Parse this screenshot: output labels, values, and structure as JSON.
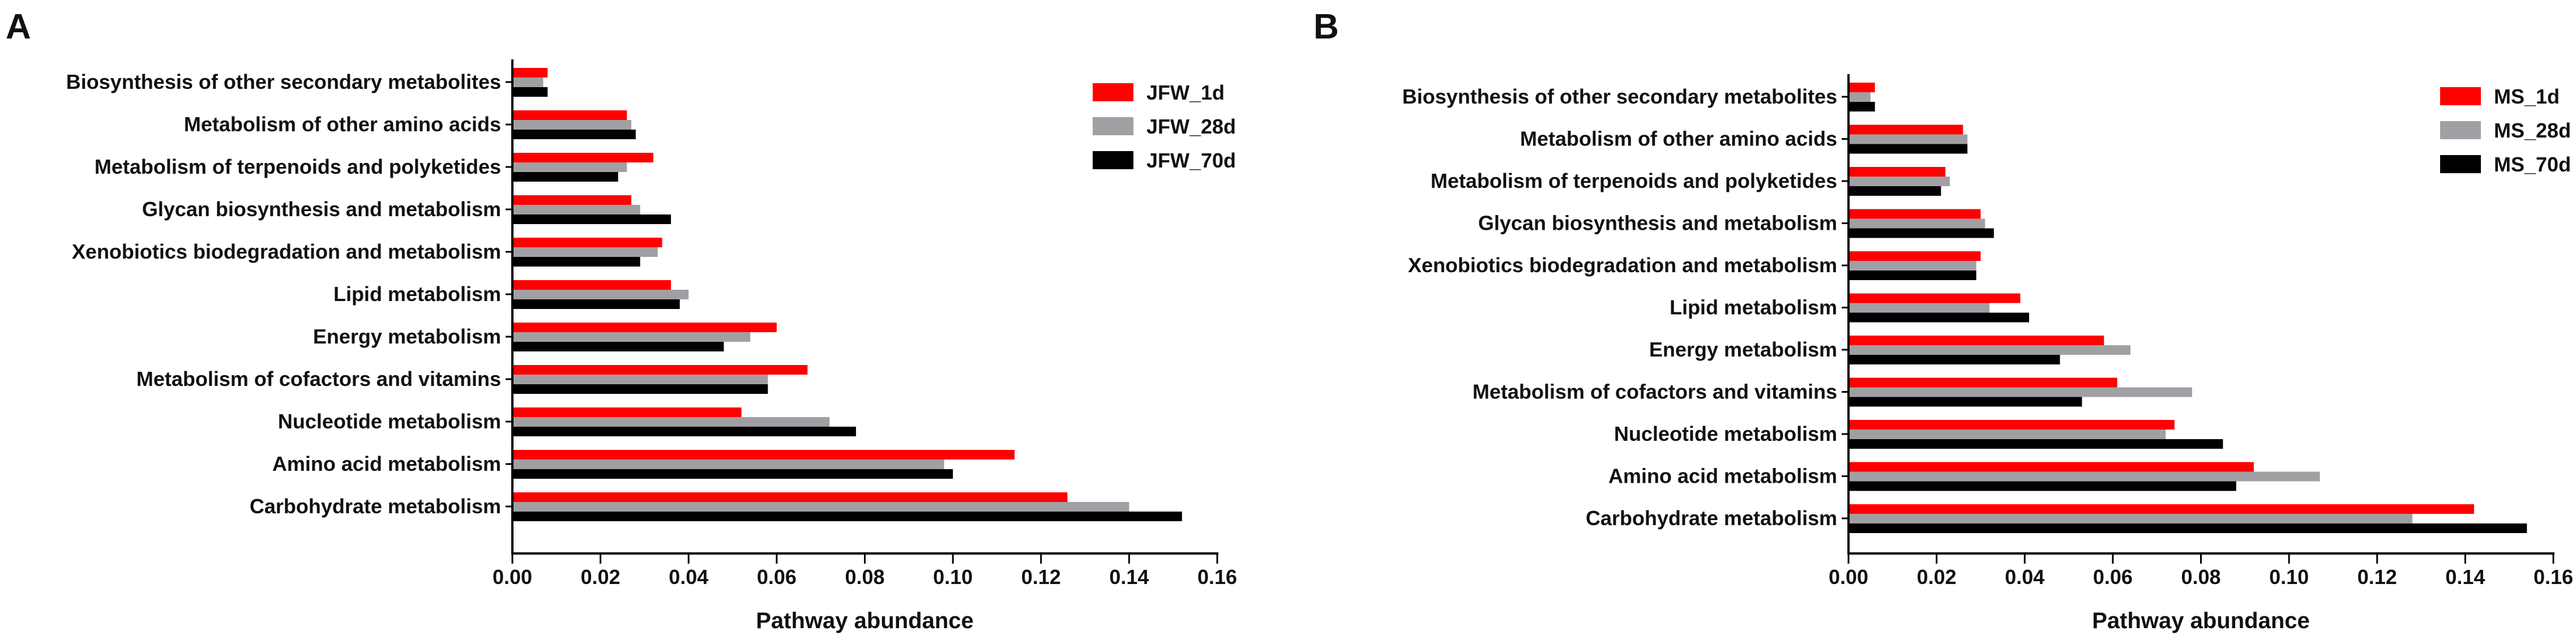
{
  "chart_data": [
    {
      "type": "bar",
      "orientation": "horizontal",
      "panel_label": "A",
      "xlabel": "Pathway abundance",
      "ylabel": "",
      "xlim": [
        0,
        0.16
      ],
      "xticks": [
        "0.00",
        "0.02",
        "0.04",
        "0.06",
        "0.08",
        "0.10",
        "0.12",
        "0.14",
        "0.16"
      ],
      "legend_position": "top-right",
      "categories": [
        "Biosynthesis of other secondary metabolites",
        "Metabolism of other amino acids",
        "Metabolism of terpenoids and polyketides",
        "Glycan biosynthesis and metabolism",
        "Xenobiotics biodegradation and metabolism",
        "Lipid metabolism",
        "Energy metabolism",
        "Metabolism of cofactors and vitamins",
        "Nucleotide metabolism",
        "Amino acid metabolism",
        "Carbohydrate metabolism"
      ],
      "series": [
        {
          "name": "JFW_1d",
          "color": "#ff0000",
          "values": [
            0.008,
            0.026,
            0.032,
            0.027,
            0.034,
            0.036,
            0.06,
            0.067,
            0.052,
            0.114,
            0.126
          ]
        },
        {
          "name": "JFW_28d",
          "color": "#a0a0a4",
          "values": [
            0.007,
            0.027,
            0.026,
            0.029,
            0.033,
            0.04,
            0.054,
            0.058,
            0.072,
            0.098,
            0.14
          ]
        },
        {
          "name": "JFW_70d",
          "color": "#000000",
          "values": [
            0.008,
            0.028,
            0.024,
            0.036,
            0.029,
            0.038,
            0.048,
            0.058,
            0.078,
            0.1,
            0.152
          ]
        }
      ]
    },
    {
      "type": "bar",
      "orientation": "horizontal",
      "panel_label": "B",
      "xlabel": "Pathway abundance",
      "ylabel": "",
      "xlim": [
        0,
        0.16
      ],
      "xticks": [
        "0.00",
        "0.02",
        "0.04",
        "0.06",
        "0.08",
        "0.10",
        "0.12",
        "0.14",
        "0.16"
      ],
      "legend_position": "top-right",
      "categories": [
        "Biosynthesis of other secondary metabolites",
        "Metabolism of other amino acids",
        "Metabolism of terpenoids and polyketides",
        "Glycan biosynthesis and metabolism",
        "Xenobiotics biodegradation and metabolism",
        "Lipid metabolism",
        "Energy metabolism",
        "Metabolism of cofactors and vitamins",
        "Nucleotide metabolism",
        "Amino acid metabolism",
        "Carbohydrate metabolism"
      ],
      "series": [
        {
          "name": "MS_1d",
          "color": "#ff0000",
          "values": [
            0.006,
            0.026,
            0.022,
            0.03,
            0.03,
            0.039,
            0.058,
            0.061,
            0.074,
            0.092,
            0.142
          ]
        },
        {
          "name": "MS_28d",
          "color": "#a0a0a4",
          "values": [
            0.005,
            0.027,
            0.023,
            0.031,
            0.029,
            0.032,
            0.064,
            0.078,
            0.072,
            0.107,
            0.128
          ]
        },
        {
          "name": "MS_70d",
          "color": "#000000",
          "values": [
            0.006,
            0.027,
            0.021,
            0.033,
            0.029,
            0.041,
            0.048,
            0.053,
            0.085,
            0.088,
            0.154
          ]
        }
      ]
    }
  ]
}
